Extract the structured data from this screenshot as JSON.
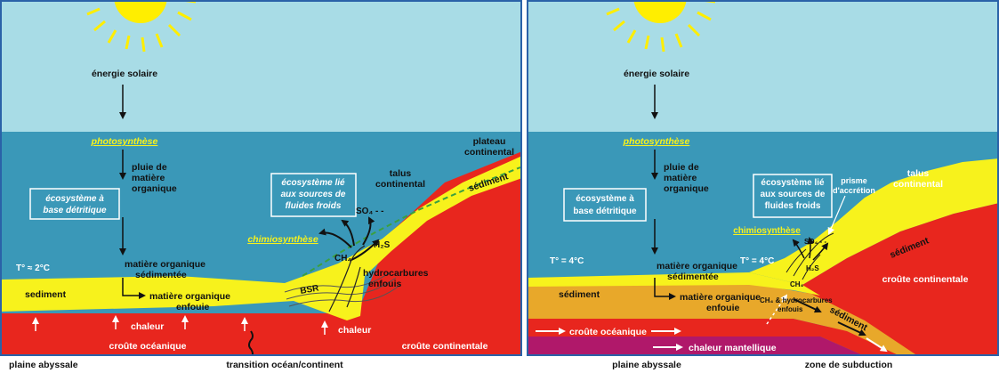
{
  "colors": {
    "sky": "#a8dce6",
    "ocean": "#3a98b8",
    "crust_oceanic": "#e8261e",
    "crust_continental": "#e8261e",
    "sediment": "#f7f21c",
    "buried_sediment": "#e8a82a",
    "mantle": "#b0186a",
    "sun": "#ffee00",
    "frame": "#2a62a8",
    "highlight_text": "#f7f21c",
    "dashed_line": "#3aa040"
  },
  "left": {
    "labels": {
      "solar": "énergie solaire",
      "photo": "photosynthèse",
      "rain": [
        "pluie de",
        "matière",
        "organique"
      ],
      "detr": [
        "écosystème à",
        "base détritique"
      ],
      "temp": "T° ≈ 2°C",
      "mo": [
        "matière organique",
        "sédimentée"
      ],
      "mo_buried": [
        "matière organique",
        "enfouie"
      ],
      "sediment": "sediment",
      "heat": "chaleur",
      "heat2": "chaleur",
      "oceanic_crust": "croûte océanique",
      "cont_crust": "croûte continentale",
      "cold": [
        "écosystème lié",
        "aux sources de",
        "fluides froids"
      ],
      "chemo": "chimiosynthèse",
      "talus": [
        "talus",
        "continental"
      ],
      "plateau": [
        "plateau",
        "continental"
      ],
      "sediment_cont": "sédiment",
      "so4": "SO₄ - -",
      "h2s": "H₂S",
      "ch4": "CH₄",
      "hydro": [
        "hydrocarbures",
        "enfouis"
      ],
      "bsr": "BSR",
      "plain": "plaine abyssale",
      "transition": "transition océan/continent"
    }
  },
  "right": {
    "labels": {
      "solar": "énergie solaire",
      "photo": "photosynthèse",
      "rain": [
        "pluie de",
        "matière",
        "organique"
      ],
      "detr": [
        "écosystème à",
        "base détritique"
      ],
      "temp1": "T° = 4°C",
      "temp2": "T° = 4°C",
      "mo": [
        "matière organique",
        "sédimentée"
      ],
      "mo_buried": [
        "matière organique",
        "enfouie"
      ],
      "sediment": "sédiment",
      "cold": [
        "écosystème lié",
        "aux sources de",
        "fluides froids"
      ],
      "prism": [
        "prisme",
        "d'accrétion"
      ],
      "talus": [
        "talus",
        "continental"
      ],
      "chemo": "chimiosynthèse",
      "so4": "SO₄ - -",
      "h2s": "H₂S",
      "ch4": "CH₄",
      "ch4_hydro": [
        "CH₄ & hydrocarbures",
        "enfouis"
      ],
      "sediment_cont": "sédiment",
      "sediment_sub": "sédiment",
      "cont_crust": "croûte continentale",
      "oceanic_crust": "croûte océanique",
      "mantle_heat": "chaleur mantellique",
      "plain": "plaine abyssale",
      "subduction": "zone de subduction"
    }
  }
}
